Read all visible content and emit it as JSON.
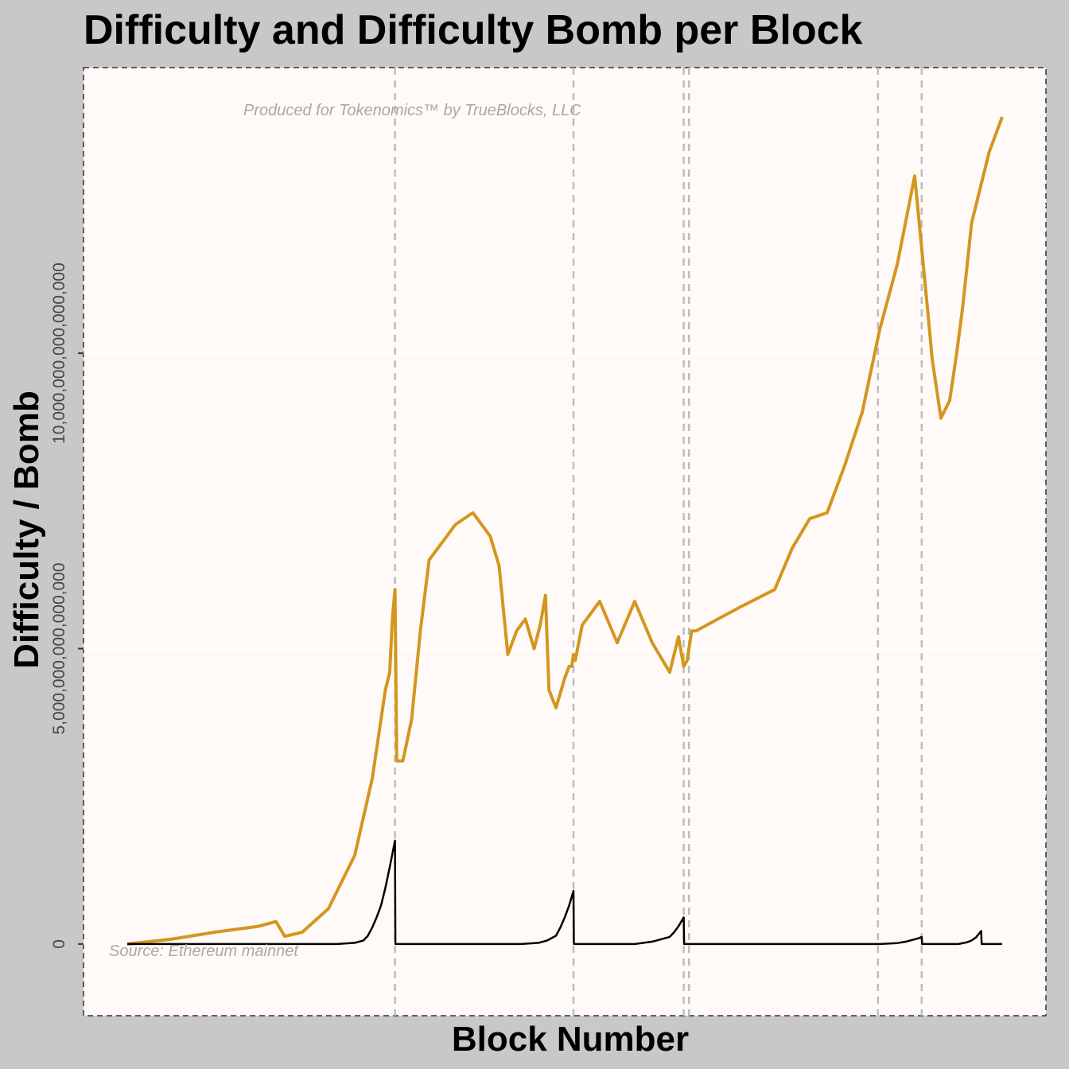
{
  "chart_data": {
    "type": "line",
    "title": "Difficulty and Difficulty Bomb per Block",
    "xlabel": "Block Number",
    "ylabel": "Difficulty / Bomb",
    "ylim": [
      -500000000000000,
      14000000000000000
    ],
    "xlim": [
      0,
      1000
    ],
    "y_ticks": [
      {
        "value": 0,
        "label": "0"
      },
      {
        "value": 5000000000000000,
        "label": "5,000,000,000,000,000"
      },
      {
        "value": 10000000000000000,
        "label": "10,000,000,000,000,000"
      }
    ],
    "annotations": {
      "credit": "Produced for Tokenomics™ by TrueBlocks, LLC",
      "source": "Source: Ethereum mainnet"
    },
    "vlines_x": [
      306,
      510,
      636,
      642,
      858,
      908
    ],
    "series": [
      {
        "color": "#d4961e",
        "x": [
          0,
          50,
          100,
          150,
          170,
          180,
          200,
          230,
          260,
          280,
          290,
          295,
          300,
          303,
          306,
          308,
          315,
          325,
          335,
          345,
          355,
          365,
          375,
          395,
          415,
          425,
          435,
          445,
          455,
          465,
          472,
          478,
          482,
          490,
          500,
          505,
          508,
          510,
          512,
          520,
          540,
          560,
          580,
          600,
          620,
          630,
          636,
          640,
          645,
          650,
          700,
          740,
          760,
          780,
          800,
          820,
          840,
          860,
          880,
          900,
          915,
          920,
          930,
          940,
          948,
          955,
          965,
          985,
          1000
        ],
        "y": [
          0,
          80000000000000,
          200000000000000,
          300000000000000,
          380000000000000,
          130000000000000,
          200000000000000,
          600000000000000,
          1500000000000000,
          2800000000000000,
          3800000000000000,
          4300000000000000,
          4600000000000000,
          5500000000000000,
          6000000000000000,
          3100000000000000,
          3100000000000000,
          3800000000000000,
          5300000000000000,
          6500000000000000,
          6700000000000000,
          6900000000000000,
          7100000000000000,
          7300000000000000,
          6900000000000000,
          6400000000000000,
          4900000000000000,
          5300000000000000,
          5500000000000000,
          5000000000000000,
          5400000000000000,
          5900000000000000,
          4300000000000000,
          4000000000000000,
          4500000000000000,
          4700000000000000,
          4700000000000000,
          4900000000000000,
          4800000000000000,
          5400000000000000,
          5800000000000000,
          5100000000000000,
          5800000000000000,
          5100000000000000,
          4600000000000000,
          5200000000000000,
          4700000000000000,
          4800000000000000,
          5300000000000000,
          5300000000000000,
          5700000000000000,
          6000000000000000,
          6700000000000000,
          7200000000000000,
          7300000000000000,
          8100000000000000,
          9000000000000000,
          10400000000000000,
          11500000000000000,
          13000000000000000,
          10700000000000000,
          9900000000000000,
          8900000000000000,
          9200000000000000,
          10000000000000000,
          10800000000000000,
          12200000000000000,
          13400000000000000,
          14000000000000000
        ]
      },
      {
        "color": "#000000",
        "x": [
          0,
          240,
          260,
          270,
          275,
          280,
          285,
          290,
          295,
          300,
          306,
          306.5,
          450,
          470,
          480,
          490,
          495,
          500,
          505,
          510,
          510.5,
          580,
          600,
          620,
          625,
          630,
          636,
          636.5,
          642,
          642.5,
          860,
          880,
          890,
          900,
          905,
          908,
          908.5,
          950,
          960,
          965,
          970,
          976,
          976.5,
          1000
        ],
        "y": [
          0,
          0,
          20000000000000,
          60000000000000,
          140000000000000,
          280000000000000,
          450000000000000,
          650000000000000,
          950000000000000,
          1300000000000000,
          1750000000000000,
          0,
          0,
          20000000000000,
          60000000000000,
          140000000000000,
          280000000000000,
          450000000000000,
          650000000000000,
          900000000000000,
          0,
          0,
          40000000000000,
          120000000000000,
          200000000000000,
          300000000000000,
          450000000000000,
          0,
          0,
          0,
          0,
          15000000000000,
          40000000000000,
          80000000000000,
          100000000000000,
          120000000000000,
          0,
          0,
          30000000000000,
          60000000000000,
          110000000000000,
          220000000000000,
          0,
          0
        ]
      }
    ]
  }
}
